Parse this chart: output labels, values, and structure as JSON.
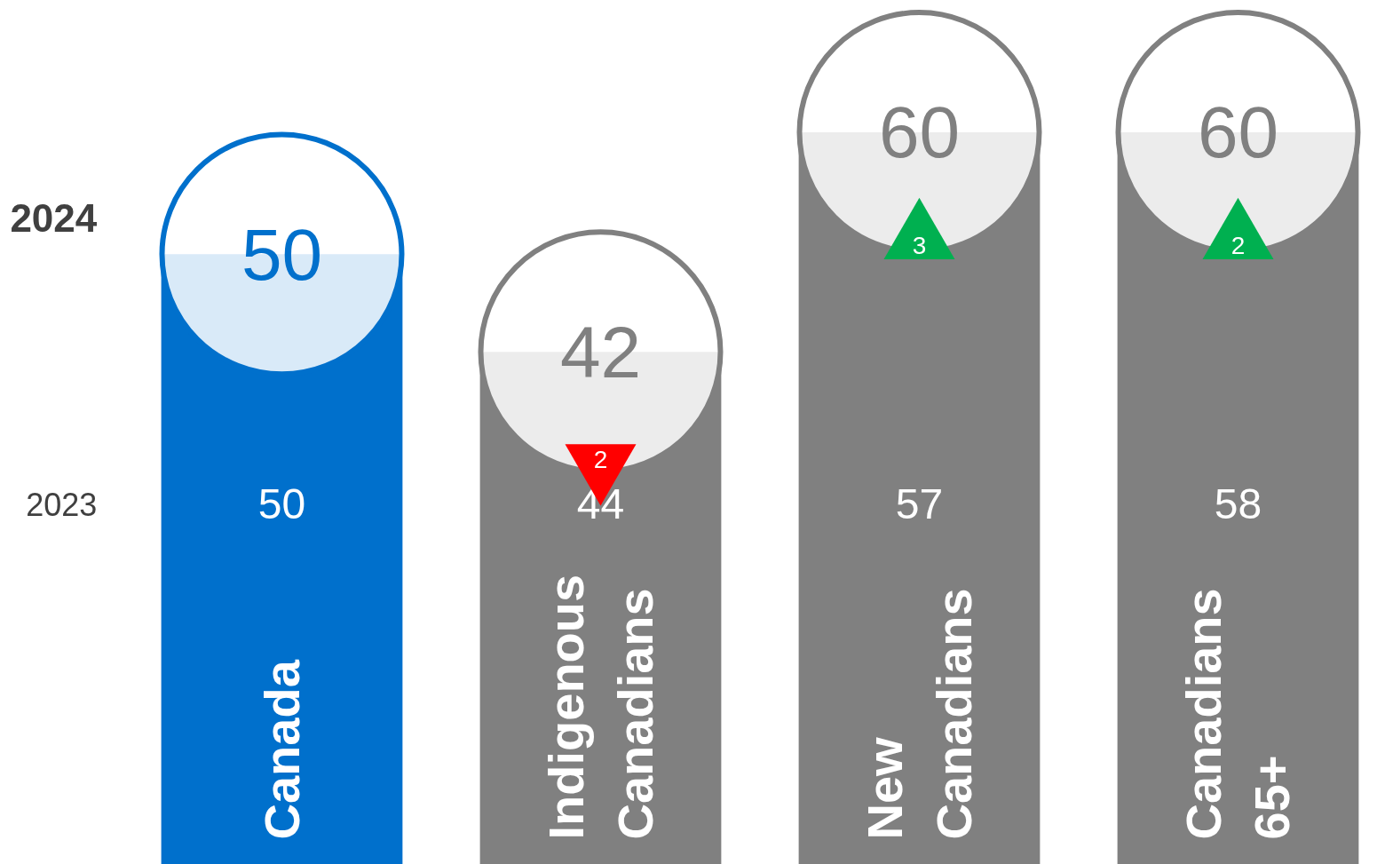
{
  "chart_data": {
    "type": "bar",
    "categories": [
      "Canada",
      "Indigenous Canadians",
      "New Canadians",
      "Canadians 65+"
    ],
    "values": [
      50,
      42,
      60,
      60
    ],
    "colors": [
      "#0070cc",
      "#808080",
      "#808080",
      "#808080"
    ],
    "data_labels": true,
    "grid": false,
    "annotations": [
      "2024",
      "2023",
      "50",
      "44",
      "57",
      "58",
      "2",
      "3",
      "2"
    ]
  }
}
